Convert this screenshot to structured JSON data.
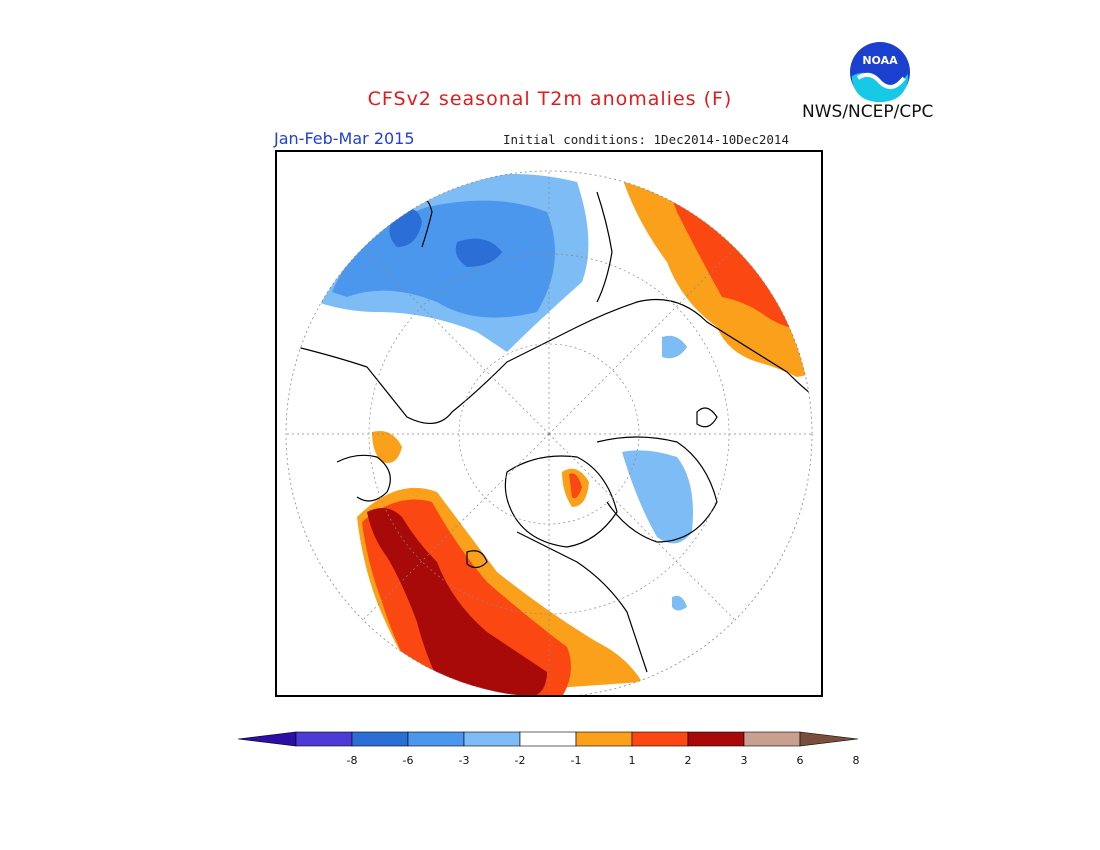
{
  "header": {
    "title": "CFSv2 seasonal T2m anomalies (F)",
    "season": "Jan-Feb-Mar 2015",
    "initial_conditions": "Initial conditions: 1Dec2014-10Dec2014",
    "agency": "NWS/NCEP/CPC",
    "logo_text": "NOAA"
  },
  "legend": {
    "bins": [
      {
        "color": "#2b10a8"
      },
      {
        "color": "#4d3bd6"
      },
      {
        "color": "#2b6fd6"
      },
      {
        "color": "#4c97ee"
      },
      {
        "color": "#7ebcf5"
      },
      {
        "color": "#ffffff"
      },
      {
        "color": "#fba01a"
      },
      {
        "color": "#fb4812"
      },
      {
        "color": "#a80a0a"
      },
      {
        "color": "#c9a090"
      },
      {
        "color": "#7a4e3c"
      }
    ],
    "ticks": [
      {
        "label": "-8"
      },
      {
        "label": "-6"
      },
      {
        "label": "-3"
      },
      {
        "label": "-2"
      },
      {
        "label": "-1"
      },
      {
        "label": "1"
      },
      {
        "label": "2"
      },
      {
        "label": "3"
      },
      {
        "label": "6"
      },
      {
        "label": "8"
      }
    ]
  },
  "map": {
    "projection": "polar stereographic, north pole",
    "colors": {
      "cold_1": "#7ebcf5",
      "cold_2": "#4c97ee",
      "cold_3": "#2b6fd6",
      "warm_1": "#fba01a",
      "warm_2": "#fb4812",
      "warm_3": "#a80a0a",
      "land_outline": "#000000",
      "grid": "#888888"
    }
  }
}
